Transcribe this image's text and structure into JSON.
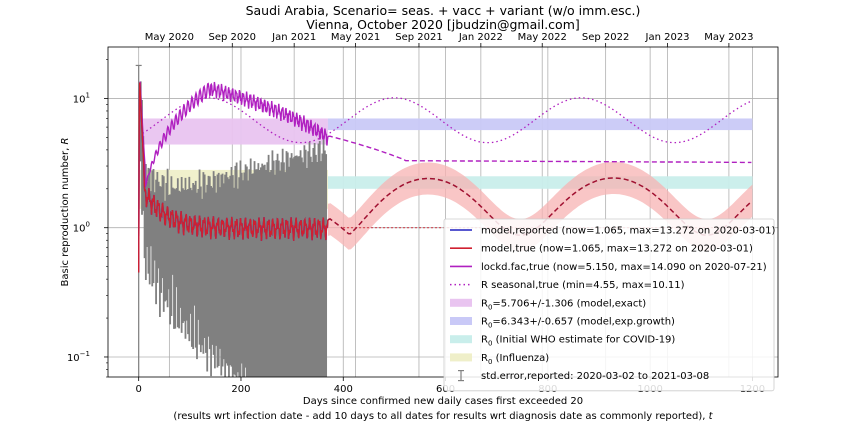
{
  "chart_data": {
    "type": "line",
    "title_line1": "Saudi Arabia, Scenario= seas. + vacc + variant (w/o imm.esc.)",
    "title_line2": "Vienna, October 2020 [jbudzin@gmail.com]",
    "xlabel_line1": "Days since confirmed new daily cases first exceeded 20",
    "xlabel_line2_prefix": "(results wrt infection date - add 10 days to all dates for results wrt diagnosis date as commonly reported), ",
    "xlabel_line2_var": "t",
    "ylabel_prefix": "Basic reproduction number, ",
    "ylabel_var": "R",
    "yscale": "log",
    "xlim": [
      -60,
      1250
    ],
    "ylim": [
      0.07,
      25
    ],
    "grid": true,
    "legend_position": "lower-right",
    "x_ticks": [
      0,
      200,
      400,
      600,
      800,
      1000,
      1200
    ],
    "y_ticks": [
      {
        "value": 0.1,
        "base": "10",
        "exp": "−1"
      },
      {
        "value": 1,
        "base": "10",
        "exp": "0"
      },
      {
        "value": 10,
        "base": "10",
        "exp": "1"
      }
    ],
    "top_axis": {
      "ticks": [
        {
          "day": 60,
          "label": "May 2020"
        },
        {
          "day": 183,
          "label": "Sep 2020"
        },
        {
          "day": 304,
          "label": "Jan 2021"
        },
        {
          "day": 424,
          "label": "May 2021"
        },
        {
          "day": 548,
          "label": "Sep 2021"
        },
        {
          "day": 669,
          "label": "Jan 2022"
        },
        {
          "day": 789,
          "label": "May 2022"
        },
        {
          "day": 913,
          "label": "Sep 2022"
        },
        {
          "day": 1034,
          "label": "Jan 2023"
        },
        {
          "day": 1154,
          "label": "May 2023"
        }
      ]
    },
    "bands": [
      {
        "name": "R0_exact",
        "x": [
          0,
          370
        ],
        "y": [
          4.4,
          7.0
        ],
        "color": "#e9c4f0"
      },
      {
        "name": "R0_exp_growth",
        "x": [
          370,
          1200
        ],
        "y": [
          5.69,
          7.0
        ],
        "color": "#c9c9f7"
      },
      {
        "name": "R0_who",
        "x": [
          370,
          1200
        ],
        "y": [
          2.0,
          2.5
        ],
        "color": "#c9eeeb"
      },
      {
        "name": "R0_influenza",
        "x": [
          0,
          370
        ],
        "y": [
          1.4,
          2.8
        ],
        "color": "#efefc9"
      }
    ],
    "series": [
      {
        "key": "reported",
        "color": "#2020c0",
        "params": {
          "now": 1.065,
          "max": 13.272,
          "date": "2020-03-01"
        }
      },
      {
        "key": "true",
        "color": "#d02030",
        "params": {
          "now": 1.065,
          "max": 13.272,
          "date": "2020-03-01"
        }
      },
      {
        "key": "lockd",
        "color": "#b020c0",
        "params": {
          "now": 5.15,
          "max": 14.09,
          "date": "2020-07-21"
        }
      },
      {
        "key": "seasonal",
        "color": "#b020c0",
        "params": {
          "min": 4.55,
          "max": 10.11,
          "period_days": 365,
          "peak_day": 500
        }
      }
    ],
    "stderr": {
      "from": "2020-03-02",
      "to": "2021-03-08",
      "color": "#808080"
    },
    "legend": [
      {
        "kind": "line",
        "color": "#2020c0",
        "text": "model,reported (now=1.065, max=13.272 on 2020-03-01)"
      },
      {
        "kind": "line",
        "color": "#d02030",
        "text": "model,true (now=1.065, max=13.272 on 2020-03-01)"
      },
      {
        "kind": "line",
        "color": "#b020c0",
        "text": "lockd.fac,true (now=5.150, max=14.090 on 2020-07-21)"
      },
      {
        "kind": "dotted",
        "color": "#b020c0",
        "text": "R seasonal,true (min=4.55, max=10.11)"
      },
      {
        "kind": "patch",
        "color": "#e9c4f0",
        "r0": true,
        "text": "=5.706+/-1.306 (model,exact)"
      },
      {
        "kind": "patch",
        "color": "#c9c9f7",
        "r0": true,
        "text": "=6.343+/-0.657 (model,exp.growth)"
      },
      {
        "kind": "patch",
        "color": "#c9eeeb",
        "r0": true,
        "text": " (Initial WHO estimate for COVID-19)"
      },
      {
        "kind": "patch",
        "color": "#efefc9",
        "r0": true,
        "text": " (Influenza)"
      },
      {
        "kind": "errbar",
        "color": "#808080",
        "text": "std.error,reported: 2020-03-02 to 2021-03-08"
      }
    ]
  }
}
